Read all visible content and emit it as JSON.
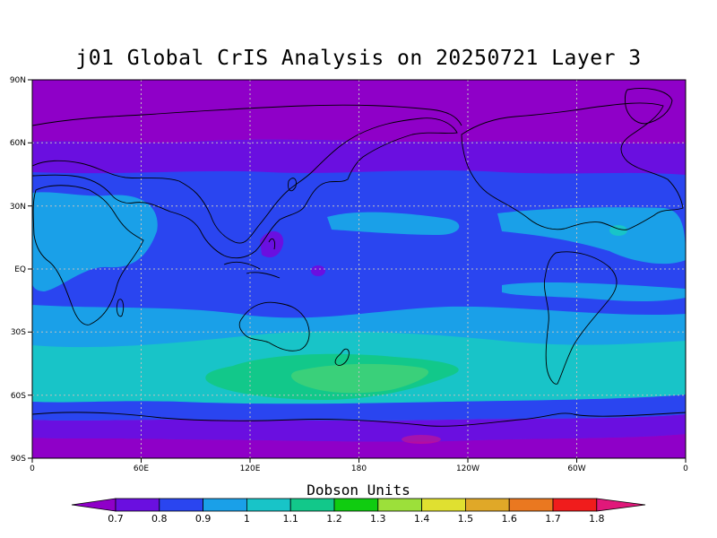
{
  "title": "j01 Global CrIS Analysis on 20250721 Layer 3",
  "colorbar": {
    "title": "Dobson Units",
    "labels": [
      "0.7",
      "0.8",
      "0.9",
      "1",
      "1.1",
      "1.2",
      "1.3",
      "1.4",
      "1.5",
      "1.6",
      "1.7",
      "1.8"
    ],
    "colors": [
      "#8f00c8",
      "#6a0fe0",
      "#2a45f0",
      "#1aa0e8",
      "#18c4c8",
      "#12c88a",
      "#10cc10",
      "#9ce03a",
      "#e0e030",
      "#e0a828",
      "#ea7820",
      "#f01c1c",
      "#e0187a"
    ]
  },
  "axes": {
    "lat_ticks": [
      "90N",
      "60N",
      "30N",
      "EQ",
      "30S",
      "60S",
      "90S"
    ],
    "lon_ticks": [
      "0",
      "60E",
      "120E",
      "180",
      "120W",
      "60W",
      "0"
    ]
  },
  "field": {
    "description_bands": [
      {
        "from": "90N",
        "to": "60N",
        "value": "0.7"
      },
      {
        "from": "60N",
        "to": "45N",
        "value": "0.8"
      },
      {
        "from": "45N",
        "to": "20S",
        "value": "0.9"
      },
      {
        "from": "20S",
        "to": "35S",
        "value": "1"
      },
      {
        "from": "35S",
        "to": "55S",
        "value": "1.1-1.2"
      },
      {
        "from": "55S",
        "to": "70S",
        "value": "0.9-0.8"
      },
      {
        "from": "70S",
        "to": "90S",
        "value": "0.7"
      }
    ]
  }
}
